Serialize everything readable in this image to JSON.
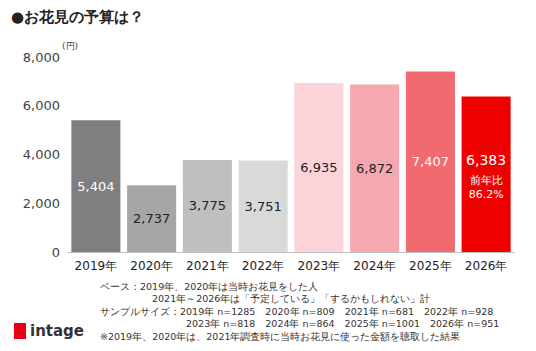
{
  "chart_data": {
    "type": "bar",
    "title": "●お花見の予算は？",
    "y_label": "(円)",
    "categories": [
      "2019年",
      "2020年",
      "2021年",
      "2022年",
      "2023年",
      "2024年",
      "2025年",
      "2026年"
    ],
    "values": [
      5404,
      2737,
      3775,
      3751,
      6935,
      6872,
      7407,
      6383
    ],
    "value_labels": [
      "5,404",
      "2,737",
      "3,775",
      "3,751",
      "6,935",
      "6,872",
      "7,407",
      "6,383"
    ],
    "colors": [
      "#7f7f7f",
      "#a6a6a6",
      "#bfbfbf",
      "#d9d9d9",
      "#fbd3d8",
      "#f6a8b0",
      "#f06a70",
      "#ee0000"
    ],
    "data_labels": true,
    "ylim": [
      0,
      8000
    ],
    "yticks": [
      0,
      {
        "value": 2000,
        "label": "2,000"
      },
      {
        "value": 4000,
        "label": "4,000"
      },
      {
        "value": 6000,
        "label": "6,000"
      },
      {
        "value": 8000,
        "label": "8,000"
      }
    ],
    "grid": false,
    "annotations": [
      {
        "category": "2026年",
        "text": "前年比\n86.2%"
      }
    ],
    "notes": [
      "ベース：2019年、2020年は当時お花見をした人",
      "2021年～2026年は「予定している」「するかもしれない」計",
      "サンプルサイズ：2019年 n=1285　2020年 n=809　2021年 n=681　2022年 n=928",
      "2023年 n=818　2024年 n=864　2025年 n=1001　2026年 n=951",
      "※2019年、2020年は、2021年調査時に当時お花見に使った金額を聴取した結果"
    ],
    "logo": "intage"
  }
}
